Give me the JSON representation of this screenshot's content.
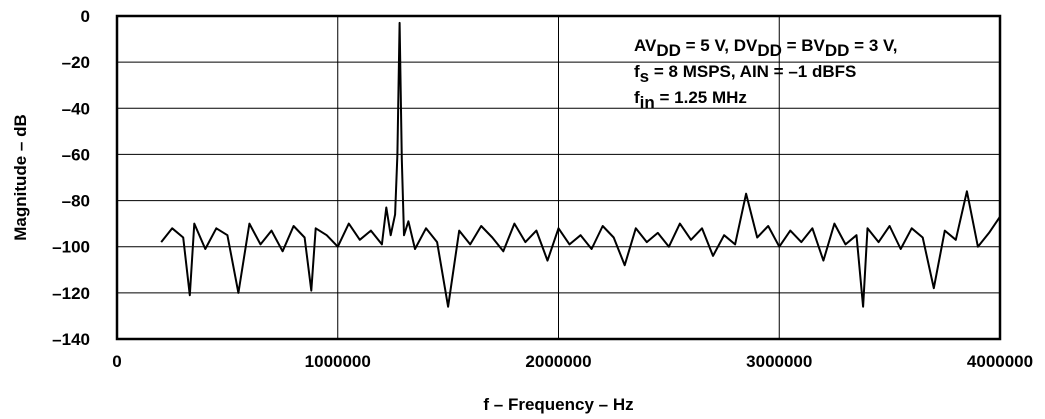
{
  "chart_data": {
    "type": "line",
    "title": "",
    "xlabel": "f – Frequency – Hz",
    "ylabel": "Magnitude – dB",
    "xlim": [
      0,
      4000000
    ],
    "ylim": [
      -140,
      0
    ],
    "x_ticks": [
      0,
      1000000,
      2000000,
      3000000,
      4000000
    ],
    "x_tick_labels": [
      "0",
      "1000000",
      "2000000",
      "3000000",
      "4000000"
    ],
    "y_ticks": [
      0,
      -20,
      -40,
      -60,
      -80,
      -100,
      -120,
      -140
    ],
    "y_tick_labels": [
      "0",
      "–20",
      "–40",
      "–60",
      "–80",
      "–100",
      "–120",
      "–140"
    ],
    "grid": true,
    "annotation_lines": [
      [
        {
          "t": "AV"
        },
        {
          "t": "DD",
          "sub": true
        },
        {
          "t": " = 5 V, DV"
        },
        {
          "t": "DD",
          "sub": true
        },
        {
          "t": " = BV"
        },
        {
          "t": "DD",
          "sub": true
        },
        {
          "t": " = 3 V,"
        }
      ],
      [
        {
          "t": "f"
        },
        {
          "t": "s",
          "sub": true
        },
        {
          "t": " = 8 MSPS, AIN = –1 dBFS"
        }
      ],
      [
        {
          "t": "f"
        },
        {
          "t": "in",
          "sub": true
        },
        {
          "t": " = 1.25 MHz"
        }
      ]
    ],
    "series": [
      {
        "x": [
          200000,
          250000,
          300000,
          330000,
          350000,
          400000,
          450000,
          500000,
          550000,
          600000,
          650000,
          700000,
          750000,
          800000,
          850000,
          880000,
          900000,
          950000,
          1000000,
          1050000,
          1100000,
          1150000,
          1200000,
          1220000,
          1240000,
          1260000,
          1270000,
          1280000,
          1290000,
          1300000,
          1320000,
          1350000,
          1400000,
          1450000,
          1500000,
          1550000,
          1600000,
          1650000,
          1700000,
          1750000,
          1800000,
          1850000,
          1900000,
          1950000,
          2000000,
          2050000,
          2100000,
          2150000,
          2200000,
          2250000,
          2300000,
          2350000,
          2400000,
          2450000,
          2500000,
          2550000,
          2600000,
          2650000,
          2700000,
          2750000,
          2800000,
          2850000,
          2900000,
          2950000,
          3000000,
          3050000,
          3100000,
          3150000,
          3200000,
          3250000,
          3300000,
          3350000,
          3380000,
          3400000,
          3450000,
          3500000,
          3550000,
          3600000,
          3650000,
          3700000,
          3750000,
          3800000,
          3850000,
          3900000,
          3950000,
          4000000
        ],
        "y": [
          -98,
          -92,
          -96,
          -121,
          -90,
          -101,
          -92,
          -95,
          -120,
          -90,
          -99,
          -93,
          -102,
          -91,
          -96,
          -119,
          -92,
          -95,
          -100,
          -90,
          -97,
          -93,
          -99,
          -83,
          -95,
          -86,
          -60,
          -3,
          -62,
          -95,
          -89,
          -101,
          -92,
          -98,
          -126,
          -93,
          -99,
          -91,
          -96,
          -102,
          -90,
          -98,
          -93,
          -106,
          -92,
          -99,
          -95,
          -101,
          -91,
          -96,
          -108,
          -92,
          -98,
          -94,
          -100,
          -90,
          -97,
          -92,
          -104,
          -95,
          -99,
          -77,
          -96,
          -91,
          -100,
          -93,
          -98,
          -92,
          -106,
          -90,
          -99,
          -95,
          -126,
          -92,
          -98,
          -91,
          -101,
          -92,
          -96,
          -118,
          -93,
          -97,
          -76,
          -100,
          -94,
          -87
        ]
      }
    ]
  }
}
